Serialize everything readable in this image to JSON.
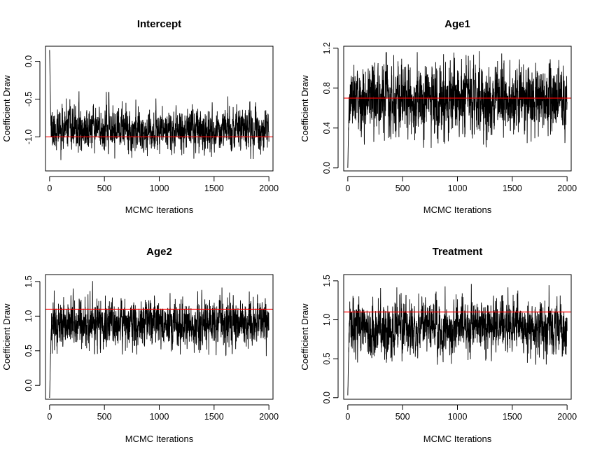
{
  "chart_data": [
    {
      "type": "line",
      "title": "Intercept",
      "xlabel": "MCMC Iterations",
      "ylabel": "Coefficient Draw",
      "xlim": [
        0,
        2000
      ],
      "ylim": [
        -1.45,
        0.2
      ],
      "x_ticks": [
        "0",
        "500",
        "1000",
        "1500",
        "2000"
      ],
      "y_ticks": [
        "-1.0",
        "-0.5",
        "0.0"
      ],
      "reference_line": {
        "value": -1.0,
        "color": "#ff0000"
      },
      "series": [
        {
          "trace": {
            "n": 2000,
            "start": 0.15,
            "mean": -0.9,
            "sd": 0.12,
            "min": -1.38,
            "max": -0.35,
            "burn_in_draws": 12
          }
        }
      ],
      "line_color": "#000000",
      "grid": false,
      "seed": 11
    },
    {
      "type": "line",
      "title": "Age1",
      "xlabel": "MCMC Iterations",
      "ylabel": "Coefficient Draw",
      "xlim": [
        0,
        2000
      ],
      "ylim": [
        -0.03,
        1.22
      ],
      "x_ticks": [
        "0",
        "500",
        "1000",
        "1500",
        "2000"
      ],
      "y_ticks": [
        "0.0",
        "0.4",
        "0.8",
        "1.2"
      ],
      "reference_line": {
        "value": 0.7,
        "color": "#ff0000"
      },
      "series": [
        {
          "trace": {
            "n": 2000,
            "start": 0.0,
            "mean": 0.68,
            "sd": 0.15,
            "min": 0.2,
            "max": 1.19,
            "burn_in_draws": 12
          }
        }
      ],
      "line_color": "#000000",
      "grid": false,
      "seed": 23
    },
    {
      "type": "line",
      "title": "Age2",
      "xlabel": "MCMC Iterations",
      "ylabel": "Coefficient Draw",
      "xlim": [
        0,
        2000
      ],
      "ylim": [
        -0.2,
        1.6
      ],
      "x_ticks": [
        "0",
        "500",
        "1000",
        "1500",
        "2000"
      ],
      "y_ticks": [
        "0.0",
        "0.5",
        "1.0",
        "1.5"
      ],
      "reference_line": {
        "value": 1.1,
        "color": "#ff0000"
      },
      "series": [
        {
          "trace": {
            "n": 2000,
            "start": -0.18,
            "mean": 0.9,
            "sd": 0.15,
            "min": 0.42,
            "max": 1.57,
            "burn_in_draws": 15
          }
        }
      ],
      "line_color": "#000000",
      "grid": false,
      "seed": 37
    },
    {
      "type": "line",
      "title": "Treatment",
      "xlabel": "MCMC Iterations",
      "ylabel": "Coefficient Draw",
      "xlim": [
        0,
        2000
      ],
      "ylim": [
        -0.02,
        1.58
      ],
      "x_ticks": [
        "0",
        "500",
        "1000",
        "1500",
        "2000"
      ],
      "y_ticks": [
        "0.0",
        "0.5",
        "1.0",
        "1.5"
      ],
      "reference_line": {
        "value": 1.1,
        "color": "#ff0000"
      },
      "series": [
        {
          "trace": {
            "n": 2000,
            "start": 0.03,
            "mean": 0.9,
            "sd": 0.15,
            "min": 0.42,
            "max": 1.54,
            "burn_in_draws": 12
          }
        }
      ],
      "line_color": "#000000",
      "grid": false,
      "seed": 53
    }
  ]
}
